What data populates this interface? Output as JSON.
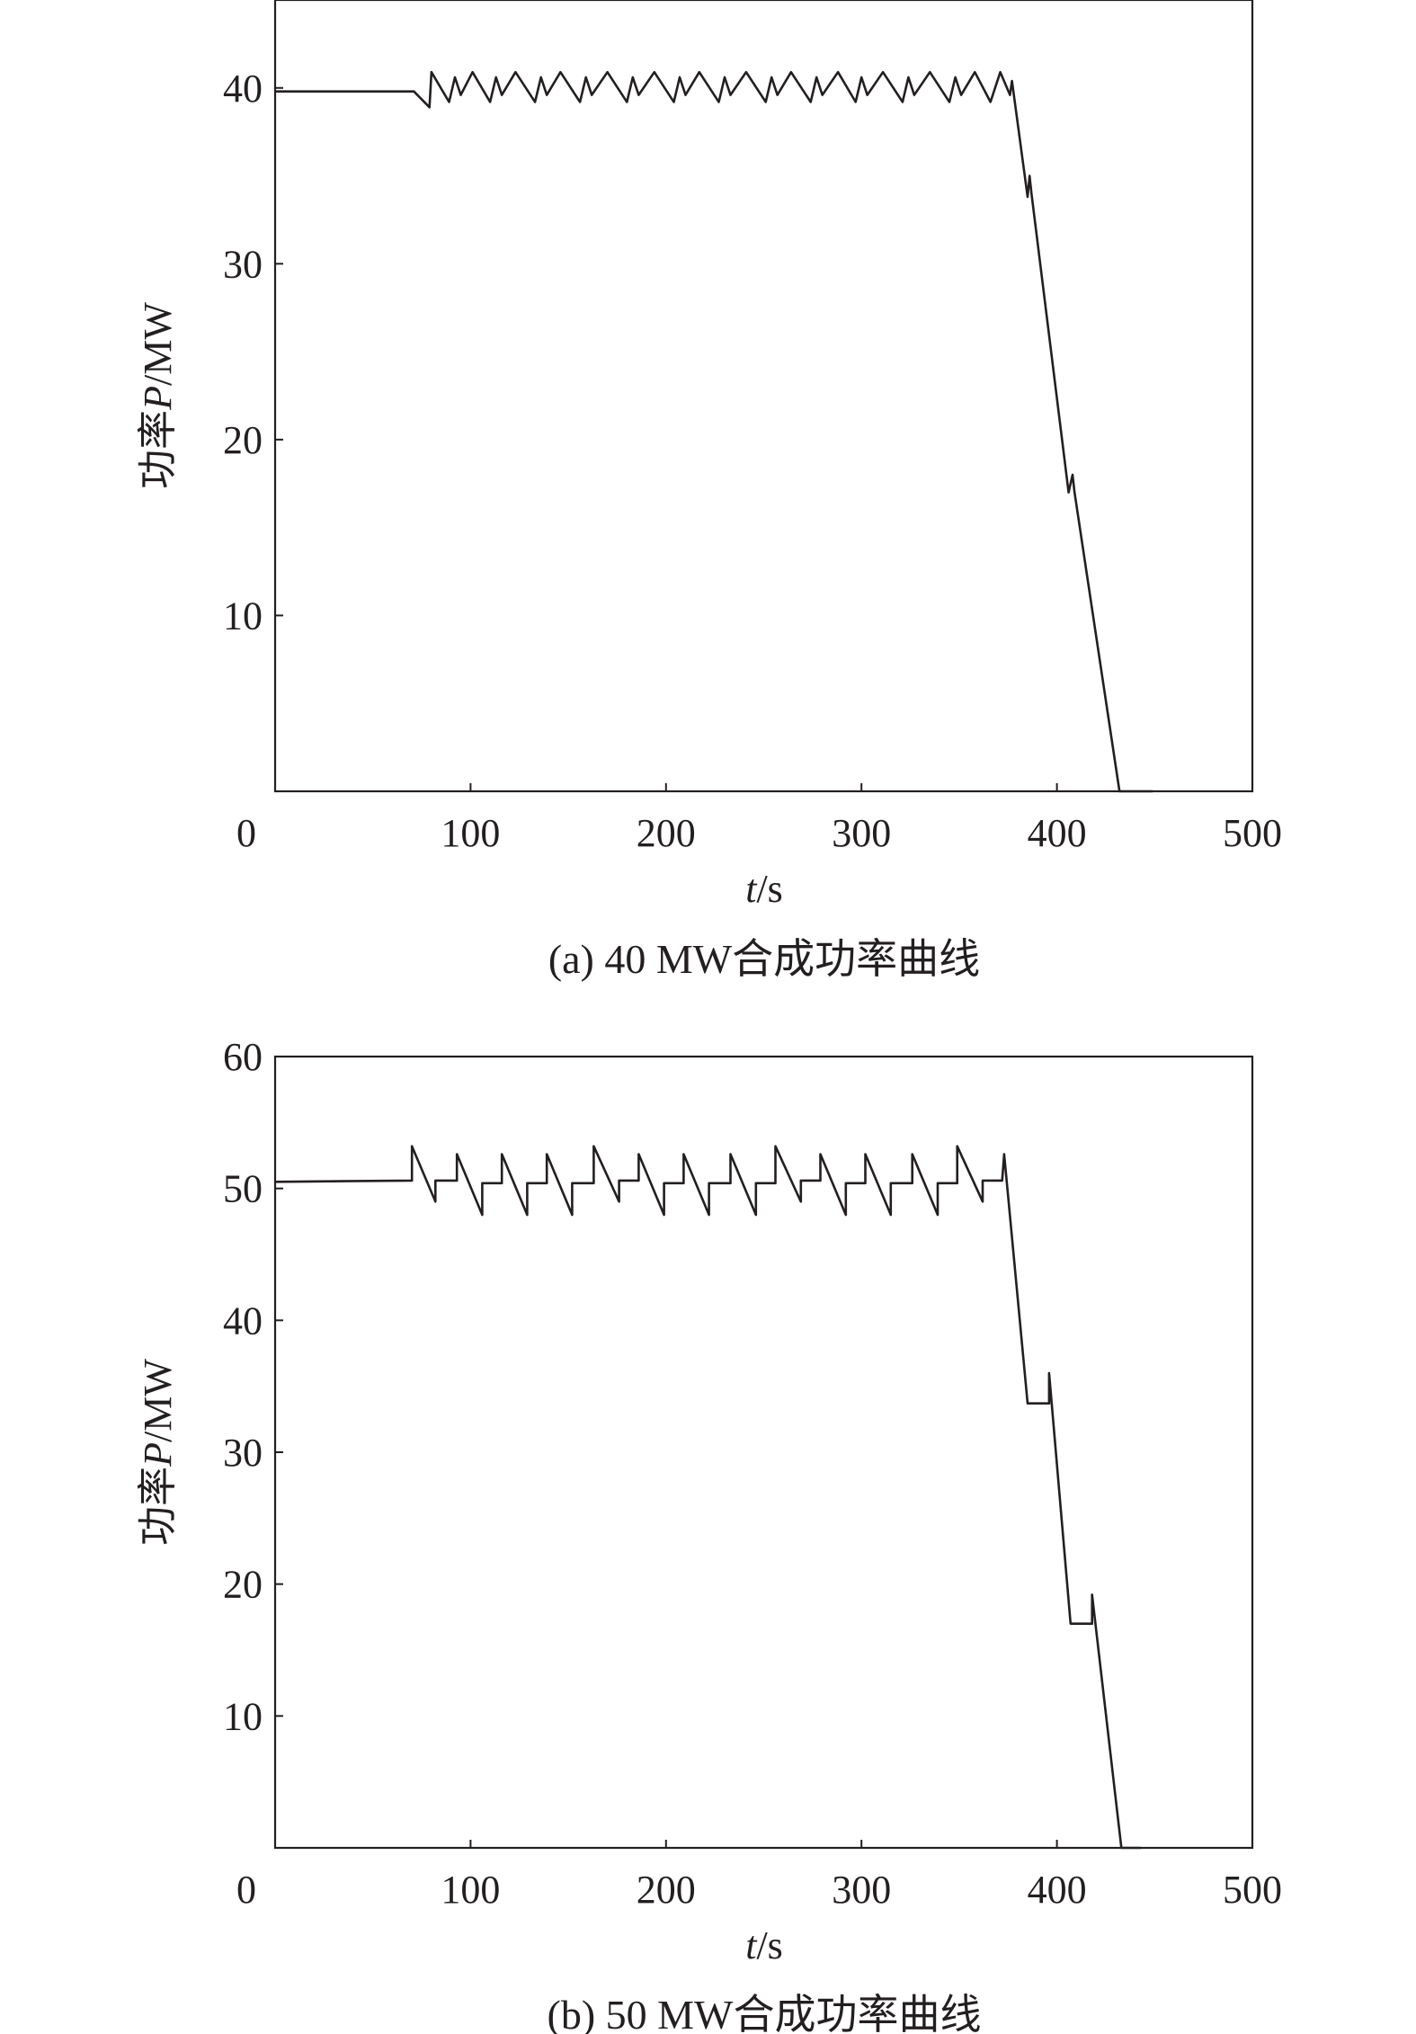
{
  "chart_data": [
    {
      "type": "line",
      "caption": "(a) 40 MW合成功率曲线",
      "xlabel_italic": "t",
      "xlabel_unit": "/s",
      "ylabel_prefix": "功率",
      "ylabel_italic": "P",
      "ylabel_unit": "/MW",
      "xlim": [
        0,
        500
      ],
      "ylim": [
        0,
        45
      ],
      "xticks": [
        0,
        100,
        200,
        300,
        400,
        500
      ],
      "yticks": [
        10,
        20,
        30,
        40
      ],
      "series": [
        {
          "points": [
            [
              0,
              39.8
            ],
            [
              71,
              39.8
            ],
            [
              79,
              38.9
            ],
            [
              80,
              40.9
            ],
            [
              89,
              39.2
            ],
            [
              92,
              40.6
            ],
            [
              95,
              39.6
            ],
            [
              101,
              40.9
            ],
            [
              110,
              39.2
            ],
            [
              113,
              40.6
            ],
            [
              116,
              39.6
            ],
            [
              123,
              40.9
            ],
            [
              133,
              39.2
            ],
            [
              136,
              40.6
            ],
            [
              139,
              39.6
            ],
            [
              146,
              40.9
            ],
            [
              156,
              39.2
            ],
            [
              159,
              40.6
            ],
            [
              162,
              39.6
            ],
            [
              170,
              40.9
            ],
            [
              180,
              39.2
            ],
            [
              183,
              40.6
            ],
            [
              186,
              39.6
            ],
            [
              194,
              40.9
            ],
            [
              204,
              39.2
            ],
            [
              207,
              40.6
            ],
            [
              210,
              39.6
            ],
            [
              217,
              40.9
            ],
            [
              227,
              39.2
            ],
            [
              230,
              40.6
            ],
            [
              233,
              39.6
            ],
            [
              241,
              40.9
            ],
            [
              251,
              39.2
            ],
            [
              254,
              40.6
            ],
            [
              257,
              39.6
            ],
            [
              264,
              40.9
            ],
            [
              274,
              39.2
            ],
            [
              277,
              40.6
            ],
            [
              280,
              39.6
            ],
            [
              288,
              40.9
            ],
            [
              297,
              39.2
            ],
            [
              300,
              40.6
            ],
            [
              303,
              39.6
            ],
            [
              311,
              40.9
            ],
            [
              321,
              39.2
            ],
            [
              324,
              40.6
            ],
            [
              327,
              39.6
            ],
            [
              335,
              40.9
            ],
            [
              345,
              39.2
            ],
            [
              348,
              40.6
            ],
            [
              351,
              39.6
            ],
            [
              358,
              40.9
            ],
            [
              366,
              39.2
            ],
            [
              371,
              40.9
            ],
            [
              376,
              39.6
            ],
            [
              377,
              40.4
            ],
            [
              385,
              33.8
            ],
            [
              386,
              35.0
            ],
            [
              387,
              34.0
            ],
            [
              406,
              17.0
            ],
            [
              408,
              18.0
            ],
            [
              409,
              17.0
            ],
            [
              432,
              0
            ],
            [
              449,
              0
            ]
          ]
        }
      ]
    },
    {
      "type": "line",
      "caption": "(b) 50 MW合成功率曲线",
      "xlabel_italic": "t",
      "xlabel_unit": "/s",
      "ylabel_prefix": "功率",
      "ylabel_italic": "P",
      "ylabel_unit": "/MW",
      "xlim": [
        0,
        500
      ],
      "ylim": [
        0,
        60
      ],
      "xticks": [
        0,
        100,
        200,
        300,
        400,
        500
      ],
      "yticks": [
        10,
        20,
        30,
        40,
        50,
        60
      ],
      "series": [
        {
          "points": [
            [
              0,
              50.5
            ],
            [
              70,
              50.6
            ],
            [
              70,
              53.2
            ],
            [
              82,
              49.0
            ],
            [
              82,
              50.6
            ],
            [
              93,
              50.6
            ],
            [
              93,
              52.6
            ],
            [
              106,
              48.0
            ],
            [
              106,
              50.4
            ],
            [
              116,
              50.4
            ],
            [
              116,
              52.6
            ],
            [
              129,
              48.0
            ],
            [
              129,
              50.4
            ],
            [
              139,
              50.4
            ],
            [
              139,
              52.6
            ],
            [
              152,
              48.0
            ],
            [
              152,
              50.4
            ],
            [
              163,
              50.4
            ],
            [
              163,
              53.2
            ],
            [
              176,
              49.0
            ],
            [
              176,
              50.6
            ],
            [
              186,
              50.6
            ],
            [
              186,
              52.6
            ],
            [
              199,
              48.0
            ],
            [
              199,
              50.4
            ],
            [
              209,
              50.4
            ],
            [
              209,
              52.6
            ],
            [
              222,
              48.0
            ],
            [
              222,
              50.4
            ],
            [
              233,
              50.4
            ],
            [
              233,
              52.6
            ],
            [
              246,
              48.0
            ],
            [
              246,
              50.4
            ],
            [
              256,
              50.4
            ],
            [
              256,
              53.2
            ],
            [
              269,
              49.0
            ],
            [
              269,
              50.6
            ],
            [
              279,
              50.6
            ],
            [
              279,
              52.6
            ],
            [
              292,
              48.0
            ],
            [
              292,
              50.4
            ],
            [
              302,
              50.4
            ],
            [
              302,
              52.6
            ],
            [
              315,
              48.0
            ],
            [
              315,
              50.4
            ],
            [
              326,
              50.4
            ],
            [
              326,
              52.6
            ],
            [
              339,
              48.0
            ],
            [
              339,
              50.4
            ],
            [
              349,
              50.4
            ],
            [
              349,
              53.2
            ],
            [
              362,
              49.0
            ],
            [
              362,
              50.6
            ],
            [
              372,
              50.6
            ],
            [
              373,
              52.6
            ],
            [
              385,
              33.7
            ],
            [
              396,
              33.7
            ],
            [
              396,
              36.0
            ],
            [
              407,
              17.0
            ],
            [
              418,
              17.0
            ],
            [
              418,
              19.2
            ],
            [
              433,
              0
            ],
            [
              443,
              0
            ]
          ]
        }
      ]
    }
  ]
}
